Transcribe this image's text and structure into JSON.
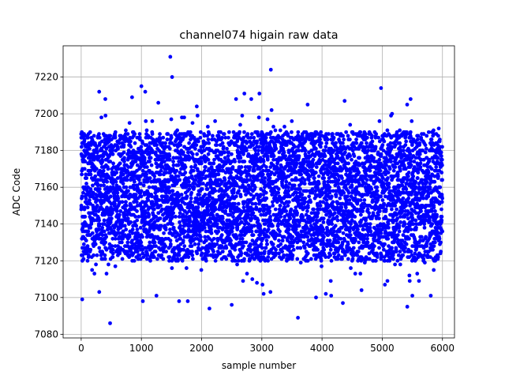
{
  "chart_data": {
    "type": "scatter",
    "title": "channel074 higain raw data",
    "xlabel": "sample number",
    "ylabel": "ADC Code",
    "xlim": [
      -300,
      6200
    ],
    "ylim": [
      7078,
      7237
    ],
    "xticks": [
      0,
      1000,
      2000,
      3000,
      4000,
      5000,
      6000
    ],
    "yticks": [
      7080,
      7100,
      7120,
      7140,
      7160,
      7180,
      7200,
      7220
    ],
    "grid": true,
    "marker_color": "#0000ff",
    "series": [
      {
        "n_samples": 6000,
        "center": 7155,
        "core_range": [
          7120,
          7190
        ],
        "notable_points": [
          {
            "x": 480,
            "y": 7086
          },
          {
            "x": 1480,
            "y": 7231
          },
          {
            "x": 1510,
            "y": 7220
          },
          {
            "x": 3150,
            "y": 7224
          },
          {
            "x": 3600,
            "y": 7089
          },
          {
            "x": 1000,
            "y": 7215
          },
          {
            "x": 4980,
            "y": 7214
          },
          {
            "x": 2960,
            "y": 7211
          },
          {
            "x": 300,
            "y": 7103
          },
          {
            "x": 2130,
            "y": 7094
          },
          {
            "x": 2500,
            "y": 7096
          },
          {
            "x": 5500,
            "y": 7101
          },
          {
            "x": 1250,
            "y": 7101
          },
          {
            "x": 3900,
            "y": 7100
          }
        ]
      }
    ]
  }
}
